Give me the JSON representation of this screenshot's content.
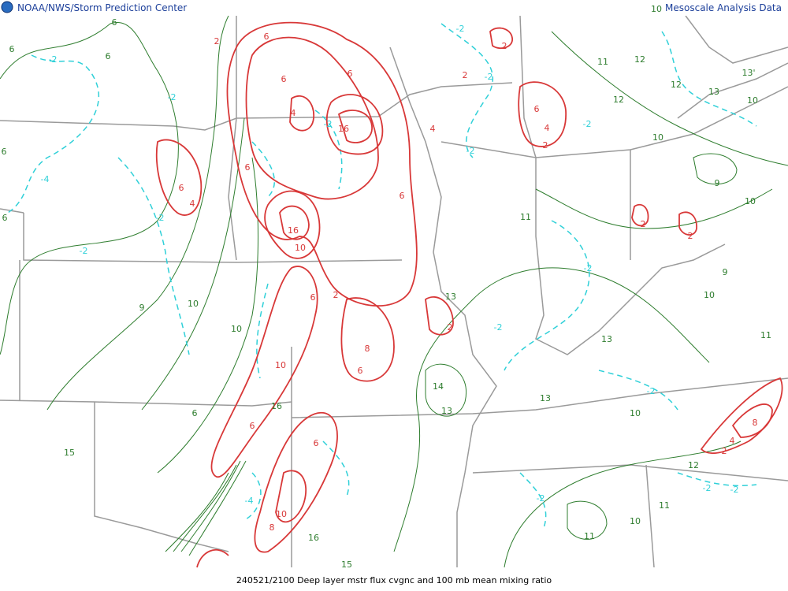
{
  "header": {
    "left": "NOAA/NWS/Storm Prediction Center",
    "right": "Mesoscale Analysis Data"
  },
  "footer": "240521/2100 Deep layer mstr flux cvgnc and 100 mb mean mixing ratio",
  "contour_labels": {
    "mixing_ratio": [
      "6",
      "6",
      "6",
      "6",
      "6",
      "9",
      "10",
      "10",
      "6",
      "15",
      "14",
      "13",
      "13",
      "13",
      "13",
      "11",
      "11",
      "10",
      "12",
      "12",
      "12",
      "10",
      "9",
      "10",
      "9",
      "10",
      "11",
      "10",
      "12",
      "11",
      "10",
      "11",
      "16",
      "15",
      "16",
      "13",
      "10",
      "13'"
    ],
    "convergence": [
      "2",
      "6",
      "6",
      "4",
      "16",
      "6",
      "2",
      "6",
      "4",
      "2",
      "6",
      "4",
      "16",
      "10",
      "6",
      "4",
      "6",
      "2",
      "6",
      "8",
      "6",
      "2",
      "10",
      "6",
      "6",
      "10",
      "8",
      "2",
      "2",
      "8",
      "4",
      "2",
      "2"
    ],
    "divergence": [
      "-2",
      "-4",
      "-2",
      "-2",
      "-2",
      "-2",
      "-2",
      "-2",
      "-2",
      "-2",
      "-2",
      "-2",
      "-2",
      "-2",
      "-4",
      "-2",
      "-2"
    ]
  }
}
